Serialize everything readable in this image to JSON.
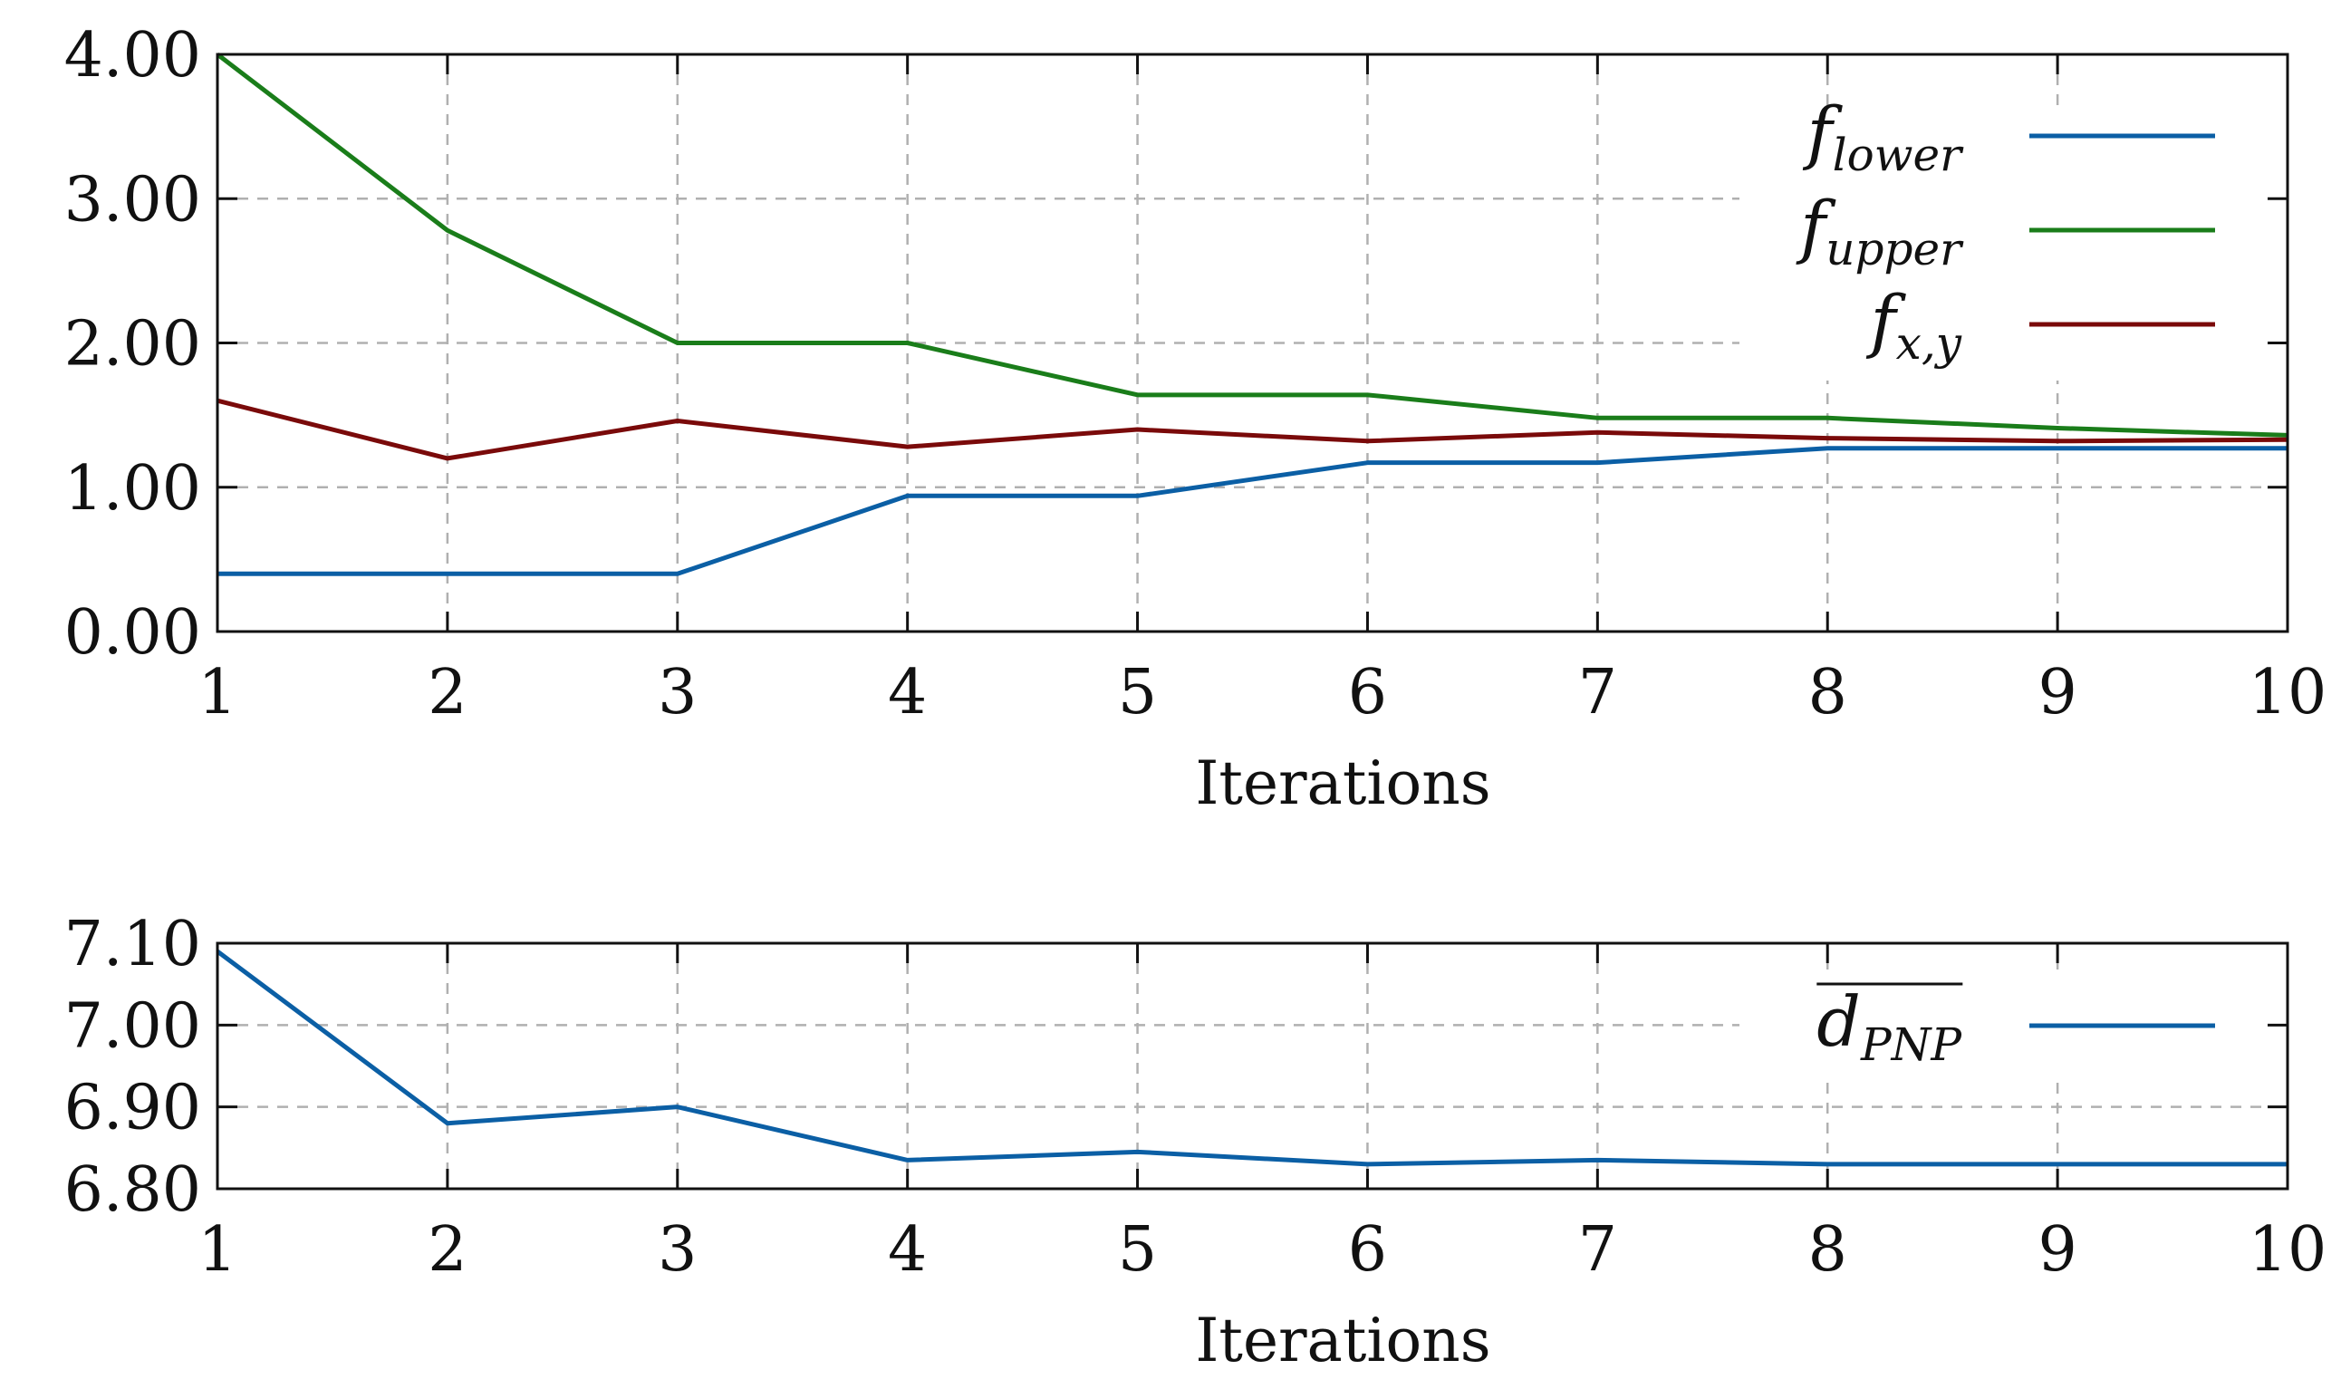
{
  "chart_data": [
    {
      "type": "line",
      "xlabel": "Iterations",
      "ylabel": "",
      "x": [
        1,
        2,
        3,
        4,
        5,
        6,
        7,
        8,
        9,
        10
      ],
      "xlim": [
        1,
        10
      ],
      "ylim": [
        0,
        4
      ],
      "yticks": [
        0,
        1,
        2,
        3,
        4
      ],
      "ytick_labels": [
        "0.00",
        "1.00",
        "2.00",
        "3.00",
        "4.00"
      ],
      "xtick_labels": [
        "1",
        "2",
        "3",
        "4",
        "5",
        "6",
        "7",
        "8",
        "9",
        "10"
      ],
      "grid": true,
      "legend_position": "top-right",
      "series": [
        {
          "name": "f",
          "subscript": "lower",
          "color": "#0b5fa5",
          "values": [
            0.4,
            0.4,
            0.4,
            0.94,
            0.94,
            1.17,
            1.17,
            1.27,
            1.27,
            1.27
          ]
        },
        {
          "name": "f",
          "subscript": "upper",
          "color": "#1a7d1a",
          "values": [
            4.0,
            2.78,
            2.0,
            2.0,
            1.64,
            1.64,
            1.48,
            1.48,
            1.41,
            1.36
          ]
        },
        {
          "name": "f",
          "subscript": "x,y",
          "color": "#7a0a0a",
          "values": [
            1.6,
            1.2,
            1.46,
            1.28,
            1.4,
            1.32,
            1.38,
            1.34,
            1.32,
            1.33
          ]
        }
      ]
    },
    {
      "type": "line",
      "xlabel": "Iterations",
      "ylabel": "",
      "x": [
        1,
        2,
        3,
        4,
        5,
        6,
        7,
        8,
        9,
        10
      ],
      "xlim": [
        1,
        10
      ],
      "ylim": [
        6.8,
        7.1
      ],
      "yticks": [
        6.8,
        6.9,
        7.0,
        7.1
      ],
      "ytick_labels": [
        "6.80",
        "6.90",
        "7.00",
        "7.10"
      ],
      "xtick_labels": [
        "1",
        "2",
        "3",
        "4",
        "5",
        "6",
        "7",
        "8",
        "9",
        "10"
      ],
      "grid": true,
      "legend_position": "top-right",
      "series": [
        {
          "name": "d",
          "subscript": "PNP",
          "overline": true,
          "color": "#0b5fa5",
          "values": [
            7.09,
            6.88,
            6.9,
            6.835,
            6.845,
            6.83,
            6.835,
            6.83,
            6.83,
            6.83
          ]
        }
      ]
    }
  ]
}
